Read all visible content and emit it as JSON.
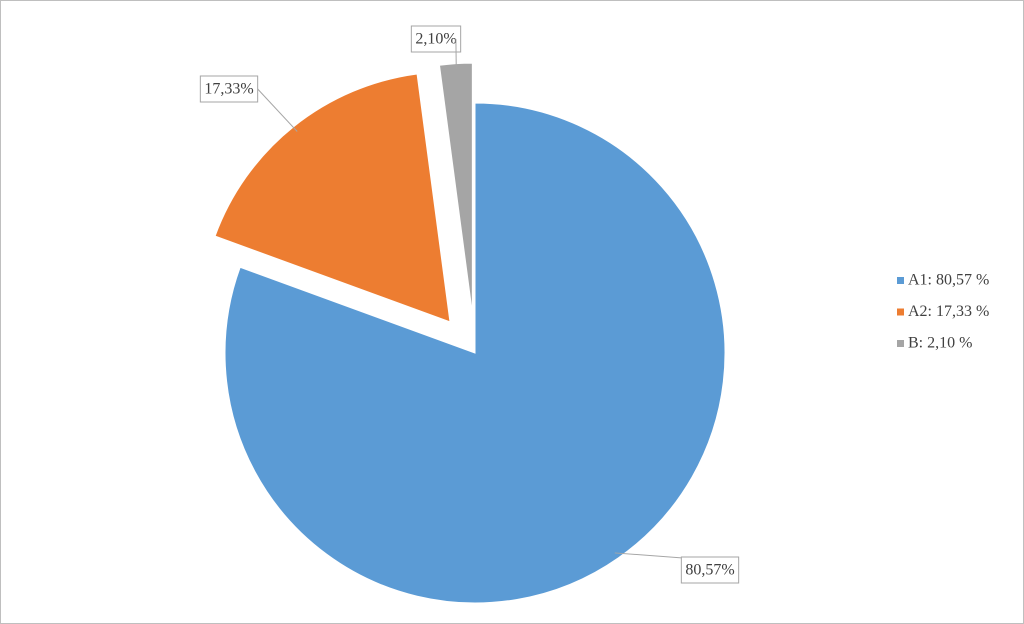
{
  "chart_data": {
    "type": "pie",
    "categories": [
      "A1: 80,57 %",
      "A2: 17,33 %",
      "B: 2,10 %"
    ],
    "values": [
      80.57,
      17.33,
      2.1
    ],
    "value_labels": [
      "80,57%",
      "17,33%",
      "2,10%"
    ],
    "colors": [
      "#5b9bd5",
      "#ed7d31",
      "#a5a5a5"
    ],
    "explode": [
      false,
      true,
      true
    ],
    "legend": "right"
  }
}
